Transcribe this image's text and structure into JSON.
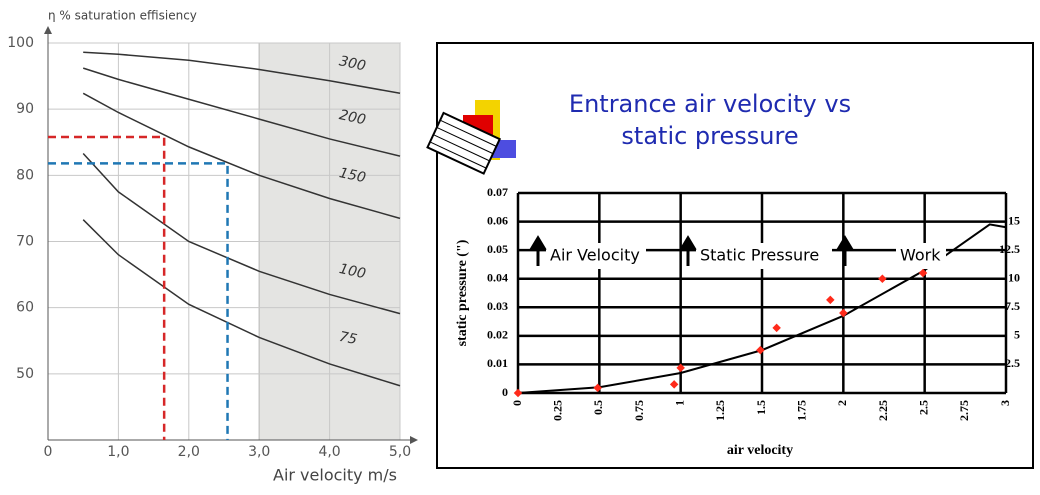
{
  "chart_data": [
    {
      "type": "line",
      "y_label": "η % saturation effisiency",
      "x_label": "Air velocity m/s",
      "xlim": [
        0,
        5
      ],
      "ylim": [
        40,
        100
      ],
      "xticks": [
        0,
        {
          "value": 1,
          "label": "1,0"
        },
        {
          "value": 2,
          "label": "2,0"
        },
        {
          "value": 3,
          "label": "3,0"
        },
        {
          "value": 4,
          "label": "4,0"
        },
        {
          "value": 5,
          "label": "5,0"
        }
      ],
      "yticks": [
        50,
        60,
        70,
        80,
        90,
        100
      ],
      "grid": true,
      "shaded_xrange": [
        3,
        5
      ],
      "x": [
        0.5,
        1,
        2,
        3,
        4,
        5
      ],
      "series": [
        {
          "name": "300",
          "color": "#333333",
          "values": [
            98.6,
            98.3,
            97.4,
            96,
            94.3,
            92.4
          ]
        },
        {
          "name": "200",
          "color": "#333333",
          "values": [
            96.2,
            94.5,
            91.5,
            88.5,
            85.5,
            82.9
          ]
        },
        {
          "name": "150",
          "color": "#333333",
          "values": [
            92.4,
            89.5,
            84.3,
            80,
            76.5,
            73.5
          ]
        },
        {
          "name": "100",
          "color": "#333333",
          "values": [
            83.3,
            77.5,
            70,
            65.5,
            62,
            59.1
          ]
        },
        {
          "name": "75",
          "color": "#333333",
          "values": [
            73.3,
            68,
            60.5,
            55.5,
            51.5,
            48.2
          ]
        }
      ],
      "guides": [
        {
          "x": 1.65,
          "y": 85.8,
          "color": "#d62728"
        },
        {
          "x": 2.55,
          "y": 81.8,
          "color": "#1f77b4"
        }
      ]
    },
    {
      "type": "scatter",
      "title": "Entrance air velocity vs static pressure",
      "y_label": "static pressure (\")",
      "x_label": "air velocity",
      "xlim": [
        0,
        3
      ],
      "ylim": [
        0,
        0.07
      ],
      "y2lim": [
        0,
        17.5
      ],
      "xticks": [
        0,
        0.25,
        0.5,
        0.75,
        1,
        1.25,
        1.5,
        1.75,
        2,
        2.25,
        2.5,
        2.75,
        3
      ],
      "yticks": [
        0,
        0.01,
        0.02,
        0.03,
        0.04,
        0.05,
        0.06,
        0.07
      ],
      "y2ticks": [
        2.5,
        5,
        7.5,
        10,
        12.5,
        15
      ],
      "grid": true,
      "color": "#ff2a1a",
      "x": [
        0,
        0.49,
        0.96,
        1.0,
        1.49,
        1.59,
        1.92,
        2.0,
        2.24,
        2.49
      ],
      "values": [
        0,
        0.0018,
        0.003,
        0.0088,
        0.015,
        0.0228,
        0.0326,
        0.028,
        0.04,
        0.042
      ],
      "fit_color": "#000000",
      "fit_x": [
        0,
        0.5,
        1,
        1.5,
        2,
        2.5,
        2.75,
        2.9,
        3
      ],
      "fit_values": [
        0,
        0.002,
        0.007,
        0.015,
        0.027,
        0.043,
        0.053,
        0.059,
        0.058
      ],
      "annotations": [
        "Air Velocity",
        "Static Pressure",
        "Work"
      ]
    }
  ]
}
